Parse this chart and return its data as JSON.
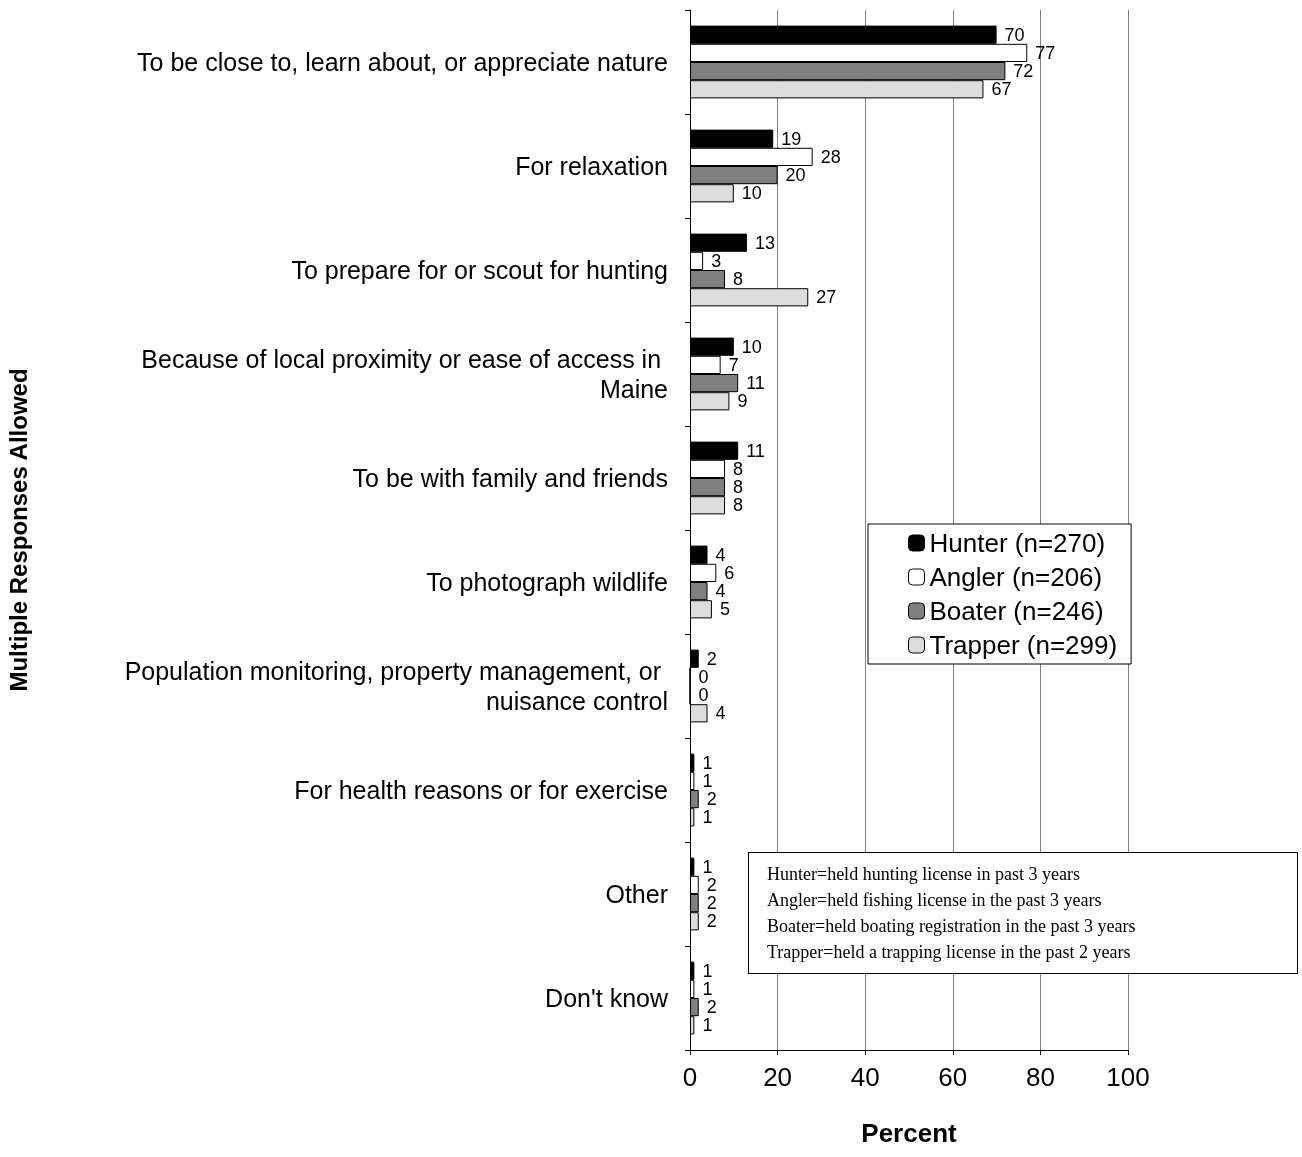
{
  "chart_data": {
    "type": "bar",
    "orientation": "horizontal",
    "xlabel": "Percent",
    "ylabel": "Multiple Responses Allowed",
    "categories": [
      "To be close to, learn about, or appreciate nature",
      "For relaxation",
      "To prepare for or scout for hunting",
      "Because of local proximity or ease of access in Maine",
      "To be with family and friends",
      "To photograph wildlife",
      "Population monitoring, property management, or nuisance control",
      "For health reasons or for exercise",
      "Other",
      "Don't know"
    ],
    "series": [
      {
        "name": "Hunter (n=270)",
        "color": "#000000",
        "values": [
          70,
          19,
          13,
          10,
          11,
          4,
          2,
          1,
          1,
          1
        ]
      },
      {
        "name": "Angler (n=206)",
        "color": "#ffffff",
        "values": [
          77,
          28,
          3,
          7,
          8,
          6,
          0,
          1,
          2,
          1
        ]
      },
      {
        "name": "Boater (n=246)",
        "color": "#808080",
        "values": [
          72,
          20,
          8,
          11,
          8,
          4,
          0,
          2,
          2,
          2
        ]
      },
      {
        "name": "Trapper (n=299)",
        "color": "#dcdcdc",
        "values": [
          67,
          10,
          27,
          9,
          8,
          5,
          4,
          1,
          2,
          1
        ]
      }
    ],
    "xlim": [
      0,
      100
    ],
    "xticks": [
      0,
      20,
      40,
      60,
      80,
      100
    ],
    "grid": "x",
    "legend": "right",
    "data_labels": true,
    "annotations": [
      "Hunter=held hunting license in past 3 years",
      "Angler=held fishing license in the past 3 years",
      "Boater=held boating registration in the past 3 years",
      "Trapper=held a trapping license in the past 2 years"
    ]
  }
}
